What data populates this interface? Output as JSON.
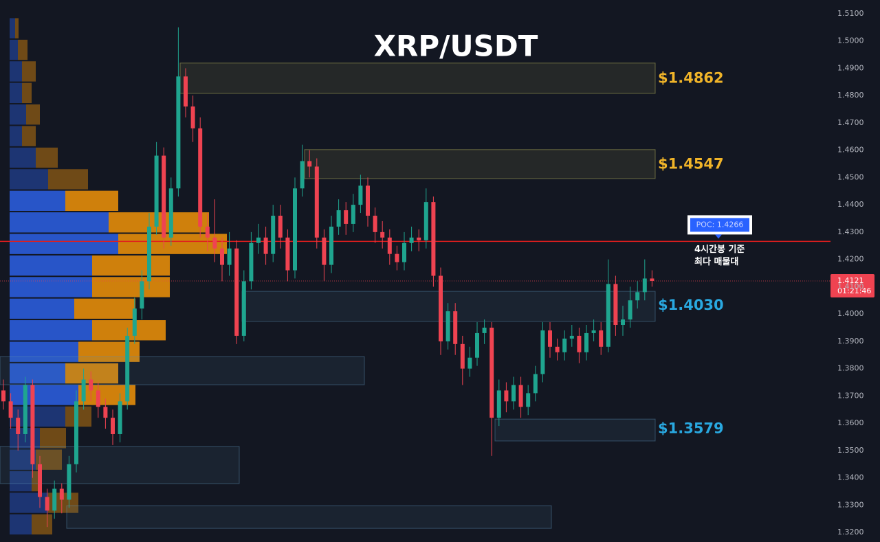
{
  "chart_data": {
    "type": "candlestick",
    "title": "XRP/USDT",
    "ylim": [
      1.3165,
      1.515
    ],
    "yticks": [
      {
        "value": 1.51,
        "label": "1.5100"
      },
      {
        "value": 1.5,
        "label": "1.5000"
      },
      {
        "value": 1.49,
        "label": "1.4900"
      },
      {
        "value": 1.48,
        "label": "1.4800"
      },
      {
        "value": 1.47,
        "label": "1.4700"
      },
      {
        "value": 1.46,
        "label": "1.4600"
      },
      {
        "value": 1.45,
        "label": "1.4500"
      },
      {
        "value": 1.44,
        "label": "1.4400"
      },
      {
        "value": 1.43,
        "label": "1.4300"
      },
      {
        "value": 1.42,
        "label": "1.4200"
      },
      {
        "value": 1.41,
        "label": "1.4100"
      },
      {
        "value": 1.4,
        "label": "1.4000"
      },
      {
        "value": 1.39,
        "label": "1.3900"
      },
      {
        "value": 1.38,
        "label": "1.3800"
      },
      {
        "value": 1.37,
        "label": "1.3700"
      },
      {
        "value": 1.36,
        "label": "1.3600"
      },
      {
        "value": 1.35,
        "label": "1.3500"
      },
      {
        "value": 1.34,
        "label": "1.3400"
      },
      {
        "value": 1.33,
        "label": "1.3300"
      },
      {
        "value": 1.32,
        "label": "1.3200"
      }
    ],
    "up_color": "#1fa58f",
    "down_color": "#ef4351",
    "open": [
      1.372,
      1.368,
      1.362,
      1.356,
      1.374,
      1.345,
      1.333,
      1.328,
      1.336,
      1.332,
      1.345,
      1.368,
      1.376,
      1.372,
      1.366,
      1.362,
      1.356,
      1.368,
      1.392,
      1.402,
      1.412,
      1.432,
      1.458,
      1.428,
      1.446,
      1.487,
      1.476,
      1.468,
      1.432,
      1.428,
      1.424,
      1.418,
      1.424,
      1.392,
      1.412,
      1.426,
      1.428,
      1.422,
      1.436,
      1.428,
      1.416,
      1.446,
      1.456,
      1.454,
      1.428,
      1.418,
      1.432,
      1.438,
      1.433,
      1.44,
      1.447,
      1.436,
      1.43,
      1.428,
      1.422,
      1.419,
      1.426,
      1.428,
      1.427,
      1.441,
      1.414,
      1.39,
      1.401,
      1.389,
      1.38,
      1.384,
      1.393,
      1.395,
      1.362,
      1.372,
      1.368,
      1.374,
      1.366,
      1.371,
      1.378,
      1.394,
      1.388,
      1.386,
      1.391,
      1.392,
      1.386,
      1.393,
      1.394,
      1.388,
      1.411,
      1.396,
      1.398,
      1.405,
      1.408,
      1.413
    ],
    "high": [
      1.376,
      1.371,
      1.365,
      1.377,
      1.376,
      1.348,
      1.336,
      1.339,
      1.338,
      1.348,
      1.372,
      1.38,
      1.379,
      1.375,
      1.369,
      1.365,
      1.371,
      1.395,
      1.406,
      1.416,
      1.437,
      1.463,
      1.461,
      1.45,
      1.505,
      1.49,
      1.48,
      1.472,
      1.437,
      1.442,
      1.428,
      1.43,
      1.427,
      1.416,
      1.43,
      1.433,
      1.432,
      1.44,
      1.44,
      1.431,
      1.45,
      1.462,
      1.46,
      1.457,
      1.431,
      1.436,
      1.442,
      1.441,
      1.444,
      1.451,
      1.45,
      1.439,
      1.434,
      1.431,
      1.425,
      1.43,
      1.432,
      1.431,
      1.446,
      1.443,
      1.417,
      1.404,
      1.404,
      1.392,
      1.388,
      1.397,
      1.398,
      1.397,
      1.376,
      1.375,
      1.377,
      1.377,
      1.374,
      1.381,
      1.397,
      1.397,
      1.391,
      1.394,
      1.396,
      1.395,
      1.396,
      1.398,
      1.397,
      1.42,
      1.414,
      1.403,
      1.41,
      1.412,
      1.42,
      1.416
    ],
    "low": [
      1.365,
      1.358,
      1.35,
      1.353,
      1.34,
      1.329,
      1.322,
      1.325,
      1.327,
      1.329,
      1.342,
      1.365,
      1.368,
      1.362,
      1.358,
      1.352,
      1.353,
      1.365,
      1.389,
      1.398,
      1.409,
      1.429,
      1.424,
      1.425,
      1.443,
      1.472,
      1.463,
      1.428,
      1.423,
      1.419,
      1.412,
      1.414,
      1.389,
      1.39,
      1.409,
      1.422,
      1.418,
      1.419,
      1.424,
      1.412,
      1.413,
      1.443,
      1.45,
      1.424,
      1.412,
      1.415,
      1.429,
      1.429,
      1.43,
      1.437,
      1.432,
      1.426,
      1.424,
      1.418,
      1.416,
      1.416,
      1.423,
      1.423,
      1.424,
      1.41,
      1.385,
      1.387,
      1.385,
      1.374,
      1.377,
      1.381,
      1.389,
      1.348,
      1.359,
      1.364,
      1.365,
      1.362,
      1.363,
      1.368,
      1.375,
      1.384,
      1.383,
      1.383,
      1.388,
      1.382,
      1.383,
      1.39,
      1.385,
      1.386,
      1.392,
      1.392,
      1.395,
      1.402,
      1.405,
      1.41
    ],
    "close": [
      1.368,
      1.362,
      1.356,
      1.374,
      1.345,
      1.333,
      1.328,
      1.336,
      1.332,
      1.345,
      1.368,
      1.376,
      1.372,
      1.366,
      1.362,
      1.356,
      1.368,
      1.392,
      1.402,
      1.412,
      1.432,
      1.458,
      1.428,
      1.446,
      1.487,
      1.476,
      1.468,
      1.432,
      1.428,
      1.424,
      1.418,
      1.424,
      1.392,
      1.412,
      1.426,
      1.428,
      1.422,
      1.436,
      1.428,
      1.416,
      1.446,
      1.456,
      1.454,
      1.428,
      1.418,
      1.432,
      1.438,
      1.433,
      1.44,
      1.447,
      1.436,
      1.43,
      1.428,
      1.422,
      1.419,
      1.426,
      1.428,
      1.427,
      1.441,
      1.414,
      1.39,
      1.401,
      1.389,
      1.38,
      1.384,
      1.393,
      1.395,
      1.362,
      1.372,
      1.368,
      1.374,
      1.366,
      1.371,
      1.378,
      1.394,
      1.388,
      1.386,
      1.391,
      1.392,
      1.386,
      1.393,
      1.394,
      1.388,
      1.411,
      1.396,
      1.398,
      1.405,
      1.408,
      1.413,
      1.4121
    ],
    "volume_profile": {
      "bins": [
        1.319,
        1.3269,
        1.3348,
        1.3427,
        1.3506,
        1.3585,
        1.3664,
        1.3743,
        1.3822,
        1.3901,
        1.398,
        1.4059,
        1.4138,
        1.4217,
        1.4296,
        1.4375,
        1.4454,
        1.4533,
        1.4612,
        1.4691,
        1.477,
        1.4849,
        1.4928,
        1.5007,
        1.5086
      ],
      "up": [
        32,
        56,
        32,
        38,
        44,
        81,
        100,
        81,
        100,
        120,
        94,
        120,
        120,
        158,
        144,
        81,
        56,
        38,
        18,
        24,
        18,
        18,
        12,
        8
      ],
      "down": [
        30,
        44,
        12,
        38,
        38,
        38,
        83,
        77,
        89,
        107,
        89,
        113,
        113,
        158,
        146,
        77,
        58,
        32,
        20,
        20,
        14,
        20,
        14,
        5
      ],
      "up_color": "#2a5bd7",
      "down_color": "#e08a0b"
    },
    "zones": [
      {
        "top": 1.4919,
        "bottom": 1.4808,
        "color": "#c8c864",
        "level": {
          "value": 1.4862,
          "label": "$1.4862"
        },
        "label_color": "#f0b429"
      },
      {
        "top": 1.4602,
        "bottom": 1.4496,
        "color": "#c8c864",
        "level": {
          "value": 1.4547,
          "label": "$1.4547"
        },
        "label_color": "#f0b429"
      },
      {
        "top": 1.4083,
        "bottom": 1.3973,
        "color": "#5a8fb4",
        "level": {
          "value": 1.403,
          "label": "$1.4030"
        },
        "label_color": "#29a8e0"
      },
      {
        "top": 1.3615,
        "bottom": 1.3535,
        "color": "#5a8fb4",
        "level": {
          "value": 1.3579,
          "label": "$1.3579"
        },
        "label_color": "#29a8e0"
      },
      {
        "top": 1.3844,
        "bottom": 1.3741,
        "color": "#5a8fb4"
      },
      {
        "top": 1.3515,
        "bottom": 1.3379,
        "color": "#5a8fb4"
      },
      {
        "top": 1.3298,
        "bottom": 1.3215,
        "color": "#5a8fb4"
      }
    ],
    "poc": {
      "value": 1.4266,
      "label": "POC: 1.4266",
      "color": "#e01e1e",
      "note": [
        "4시간봉 기준",
        "최다 매물대"
      ]
    },
    "last_price": {
      "value": 1.4121,
      "label": "1.4121",
      "countdown": "01:21:46",
      "color": "#ef4351"
    }
  }
}
